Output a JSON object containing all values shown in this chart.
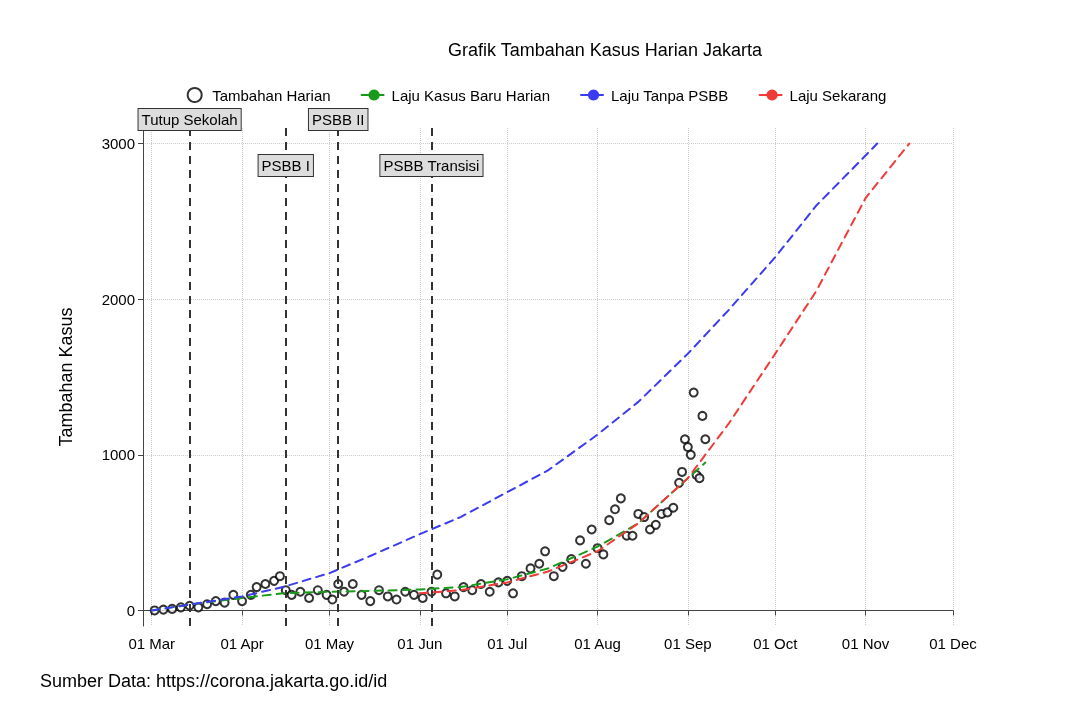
{
  "chart_data": {
    "type": "scatter",
    "title": "Grafik Tambahan Kasus Harian Jakarta",
    "ylabel": "Tambahan Kasus",
    "annotations": [
      "Sumber Data: https://corona.jakarta.go.id/id"
    ],
    "legend": "top",
    "grid": true,
    "xlim": [
      "--02-27",
      "--12-01"
    ],
    "xticks": [
      {
        "value": "--03-01",
        "label": "01 Mar"
      },
      {
        "value": "--04-01",
        "label": "01 Apr"
      },
      {
        "value": "--05-01",
        "label": "01 May"
      },
      {
        "value": "--06-01",
        "label": "01 Jun"
      },
      {
        "value": "--07-01",
        "label": "01 Jul"
      },
      {
        "value": "--08-01",
        "label": "01 Aug"
      },
      {
        "value": "--09-01",
        "label": "01 Sep"
      },
      {
        "value": "--10-01",
        "label": "01 Oct"
      },
      {
        "value": "--11-01",
        "label": "01 Nov"
      },
      {
        "value": "--12-01",
        "label": "01 Dec"
      }
    ],
    "ylim": [
      -100,
      3100
    ],
    "yticks": [
      0,
      1000,
      2000,
      3000
    ],
    "ref_lines": [
      {
        "axis": "x",
        "value": "--03-14",
        "label": "Tutup Sekolah",
        "line_style": "dashed",
        "color": "#333333"
      },
      {
        "axis": "x",
        "value": "--04-16",
        "label": "PSBB I",
        "line_style": "dashed",
        "color": "#333333"
      },
      {
        "axis": "x",
        "value": "--05-04",
        "label": "PSBB II",
        "line_style": "dashed",
        "color": "#333333"
      },
      {
        "axis": "x",
        "value": "--06-05",
        "label": "PSBB Transisi",
        "line_style": "dashed",
        "color": "#333333"
      }
    ],
    "series": [
      {
        "name": "Tambahan Harian",
        "marker": "circle",
        "color": "#000000",
        "x": [
          "--03-02",
          "--03-05",
          "--03-08",
          "--03-11",
          "--03-14",
          "--03-17",
          "--03-20",
          "--03-23",
          "--03-26",
          "--03-29",
          "--04-01",
          "--04-04",
          "--04-06",
          "--04-09",
          "--04-12",
          "--04-14",
          "--04-16",
          "--04-18",
          "--04-21",
          "--04-24",
          "--04-27",
          "--04-30",
          "--05-02",
          "--05-04",
          "--05-06",
          "--05-09",
          "--05-12",
          "--05-15",
          "--05-18",
          "--05-21",
          "--05-24",
          "--05-27",
          "--05-30",
          "--06-02",
          "--06-05",
          "--06-07",
          "--06-10",
          "--06-13",
          "--06-16",
          "--06-19",
          "--06-22",
          "--06-25",
          "--06-28",
          "--07-01",
          "--07-03",
          "--07-06",
          "--07-09",
          "--07-12",
          "--07-14",
          "--07-17",
          "--07-20",
          "--07-23",
          "--07-26",
          "--07-28",
          "--07-30",
          "--08-01",
          "--08-03",
          "--08-05",
          "--08-07",
          "--08-09",
          "--08-11",
          "--08-13",
          "--08-15",
          "--08-17",
          "--08-19",
          "--08-21",
          "--08-23",
          "--08-25",
          "--08-27",
          "--08-29",
          "--08-30",
          "--08-31",
          "--09-01",
          "--09-02",
          "--09-03",
          "--09-04",
          "--09-05",
          "--09-06",
          "--09-07"
        ],
        "values": [
          0,
          5,
          10,
          20,
          30,
          20,
          40,
          60,
          50,
          100,
          60,
          100,
          150,
          170,
          190,
          220,
          130,
          100,
          120,
          80,
          130,
          100,
          70,
          170,
          120,
          170,
          100,
          60,
          130,
          90,
          70,
          120,
          100,
          80,
          120,
          230,
          110,
          90,
          150,
          130,
          170,
          120,
          180,
          190,
          110,
          220,
          270,
          300,
          380,
          220,
          280,
          330,
          450,
          300,
          520,
          400,
          360,
          580,
          650,
          720,
          480,
          480,
          620,
          600,
          520,
          550,
          620,
          630,
          660,
          820,
          890,
          1100,
          1050,
          1000,
          1400,
          870,
          850,
          1250,
          1100
        ]
      },
      {
        "name": "Laju Kasus Baru Harian",
        "type": "line",
        "line_style": "dashed",
        "marker": "none",
        "color": "#1a9a1a",
        "x": [
          "--03-01",
          "--03-15",
          "--04-01",
          "--04-15",
          "--05-01",
          "--05-15",
          "--06-01",
          "--06-15",
          "--07-01",
          "--07-15",
          "--08-01",
          "--08-15",
          "--09-01",
          "--09-07"
        ],
        "values": [
          0,
          40,
          80,
          110,
          120,
          125,
          135,
          150,
          200,
          270,
          410,
          560,
          850,
          950
        ]
      },
      {
        "name": "Laju Tanpa PSBB",
        "type": "line",
        "line_style": "dashed",
        "marker": "none",
        "color": "#3b3bf0",
        "x": [
          "--03-01",
          "--03-15",
          "--04-01",
          "--04-15",
          "--05-01",
          "--05-15",
          "--06-01",
          "--06-15",
          "--07-01",
          "--07-15",
          "--08-01",
          "--08-15",
          "--09-01",
          "--09-15",
          "--10-01",
          "--10-15",
          "--11-05"
        ],
        "values": [
          0,
          40,
          90,
          150,
          240,
          350,
          490,
          600,
          760,
          900,
          1130,
          1340,
          1650,
          1930,
          2270,
          2600,
          3000
        ]
      },
      {
        "name": "Laju Sekarang",
        "type": "line",
        "line_style": "dashed",
        "marker": "none",
        "color": "#f03b3b",
        "x": [
          "--06-01",
          "--06-15",
          "--07-01",
          "--07-15",
          "--08-01",
          "--08-15",
          "--09-01",
          "--09-15",
          "--10-01",
          "--10-15",
          "--11-01",
          "--11-16"
        ],
        "values": [
          110,
          130,
          180,
          250,
          380,
          560,
          850,
          1200,
          1650,
          2050,
          2650,
          3000
        ]
      }
    ]
  }
}
